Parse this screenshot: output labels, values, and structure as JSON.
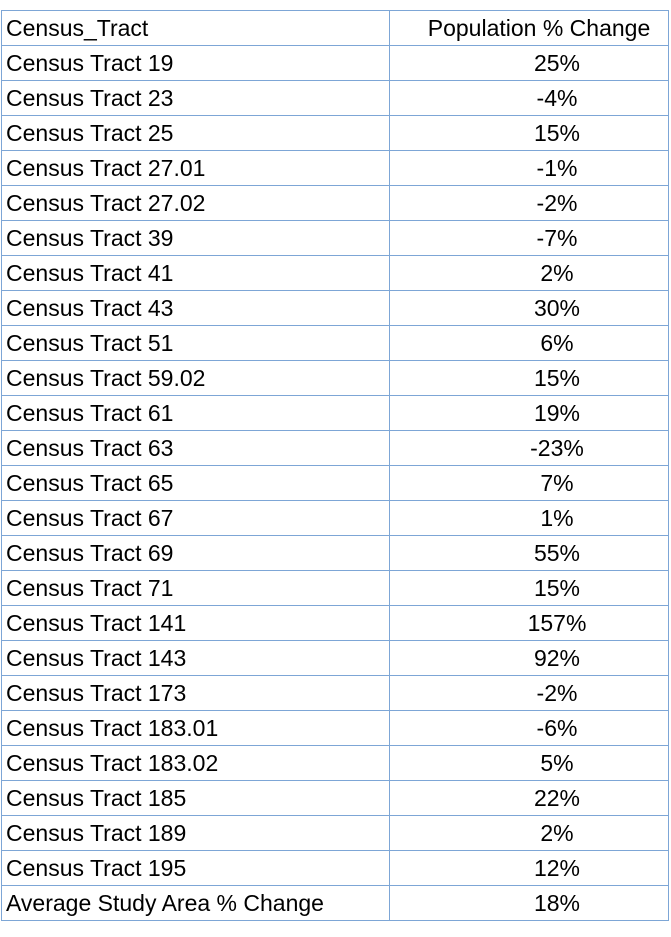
{
  "table": {
    "headers": [
      "Census_Tract",
      "Population % Change"
    ],
    "rows": [
      [
        "Census Tract 19",
        "25%"
      ],
      [
        "Census Tract 23",
        "-4%"
      ],
      [
        "Census Tract 25",
        "15%"
      ],
      [
        "Census Tract 27.01",
        "-1%"
      ],
      [
        "Census Tract 27.02",
        "-2%"
      ],
      [
        "Census Tract 39",
        "-7%"
      ],
      [
        "Census Tract 41",
        "2%"
      ],
      [
        "Census Tract 43",
        "30%"
      ],
      [
        "Census Tract 51",
        "6%"
      ],
      [
        "Census Tract 59.02",
        "15%"
      ],
      [
        "Census Tract 61",
        "19%"
      ],
      [
        "Census Tract 63",
        "-23%"
      ],
      [
        "Census Tract 65",
        "7%"
      ],
      [
        "Census Tract 67",
        "1%"
      ],
      [
        "Census Tract 69",
        "55%"
      ],
      [
        "Census Tract 71",
        "15%"
      ],
      [
        "Census Tract 141",
        "157%"
      ],
      [
        "Census Tract 143",
        "92%"
      ],
      [
        "Census Tract 173",
        "-2%"
      ],
      [
        "Census Tract 183.01",
        "-6%"
      ],
      [
        "Census Tract 183.02",
        "5%"
      ],
      [
        "Census Tract 185",
        "22%"
      ],
      [
        "Census Tract 189",
        "2%"
      ],
      [
        "Census Tract 195",
        "12%"
      ],
      [
        "Average Study Area % Change",
        "18%"
      ]
    ]
  },
  "colors": {
    "grid_line": "#7da6d6",
    "text": "#000000",
    "background": "#ffffff"
  }
}
